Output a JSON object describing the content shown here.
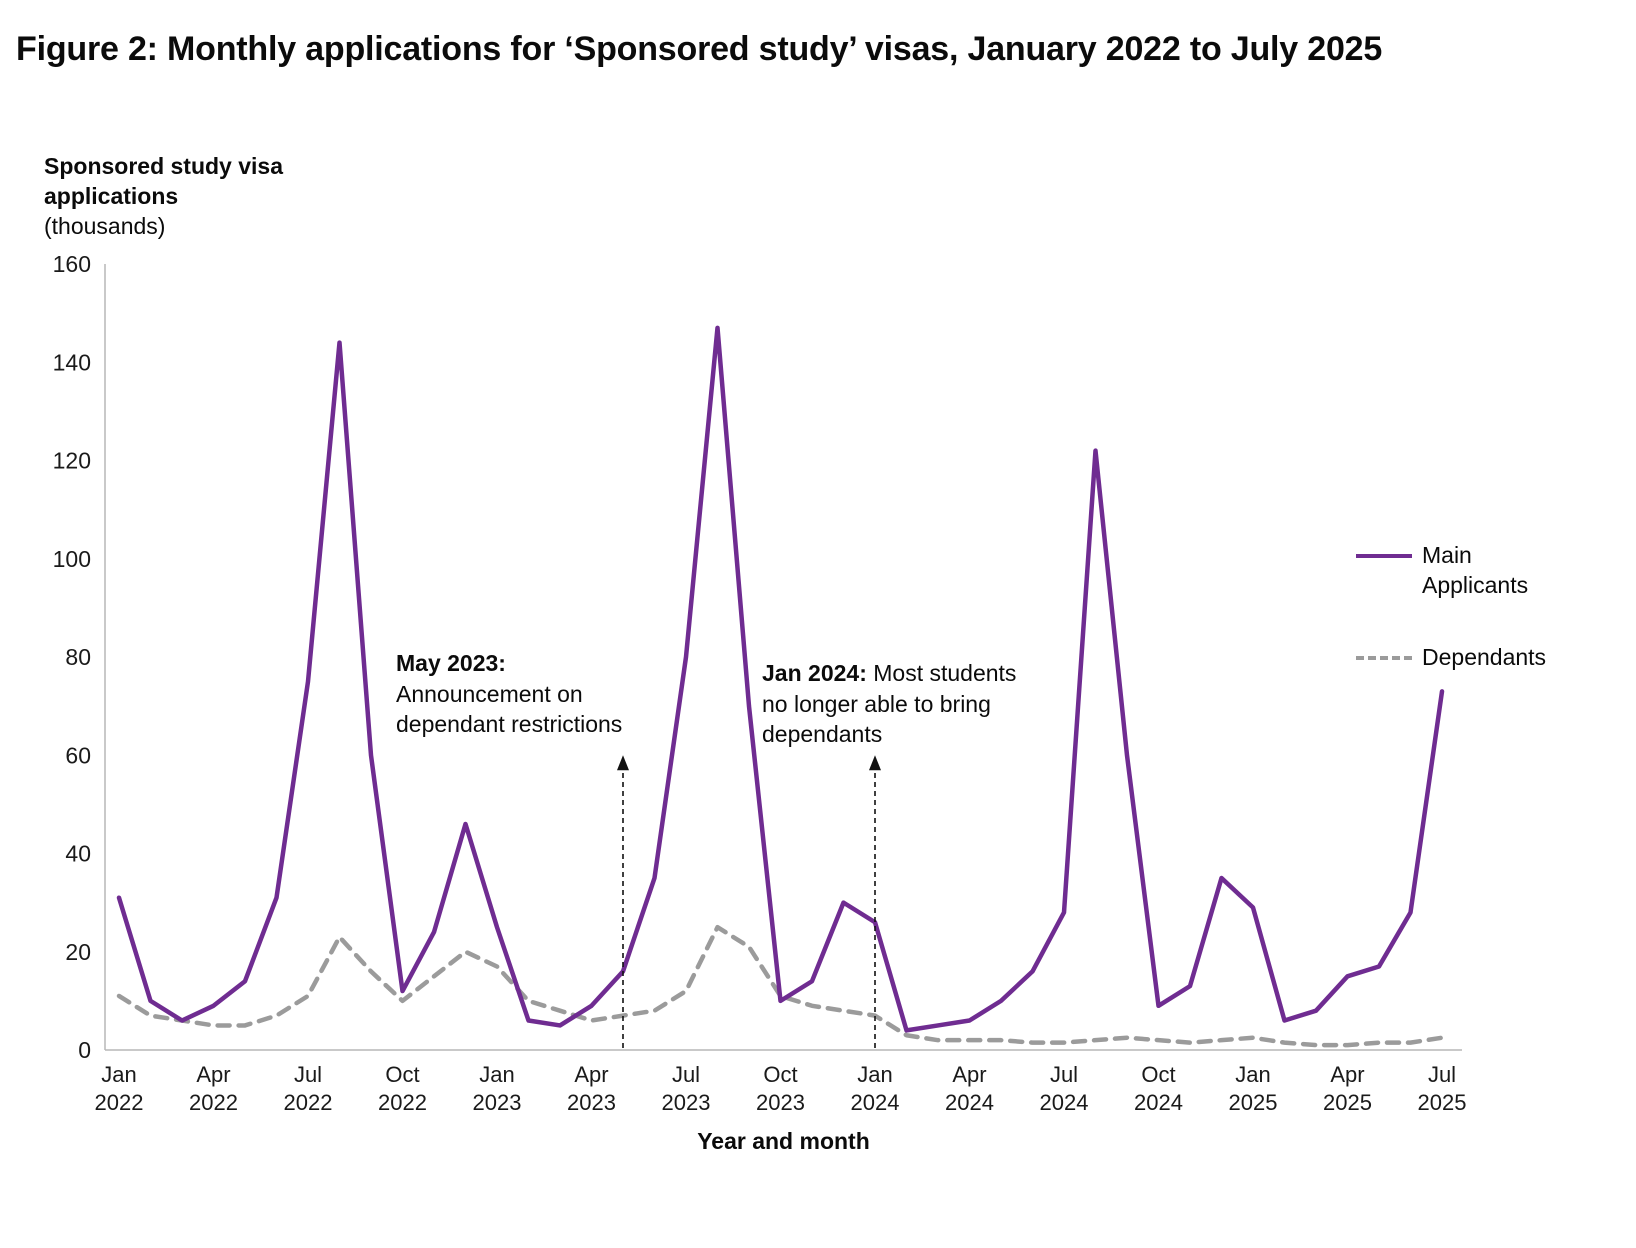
{
  "title": "Figure 2: Monthly applications for ‘Sponsored study’ visas, January 2022 to July 2025",
  "y_axis": {
    "title_bold": "Sponsored study visa applications",
    "title_note": "(thousands)"
  },
  "x_axis": {
    "title": "Year and month"
  },
  "legend": {
    "items": [
      {
        "label": "Main Applicants",
        "style": "solid",
        "color": "#6f2c91"
      },
      {
        "label": "Dependants",
        "style": "dashed",
        "color": "#9b9b9b"
      }
    ]
  },
  "annotations": [
    {
      "bold": "May 2023:",
      "rest": "Announcement on dependant restrictions",
      "month": "May 2023",
      "month_index": 16,
      "arrow_top_value": 60
    },
    {
      "bold": "Jan 2024:",
      "rest": " Most students no longer able to bring dependants",
      "month": "Jan 2024",
      "month_index": 24,
      "arrow_top_value": 60
    }
  ],
  "chart_data": {
    "type": "line",
    "title": "Figure 2: Monthly applications for ‘Sponsored study’ visas, January 2022 to July 2025",
    "xlabel": "Year and month",
    "ylabel": "Sponsored study visa applications (thousands)",
    "ylim": [
      0,
      160
    ],
    "yticks": [
      0,
      20,
      40,
      60,
      80,
      100,
      120,
      140,
      160
    ],
    "xtick_every": 3,
    "grid": false,
    "legend_position": "right",
    "categories": [
      "Jan 2022",
      "Feb 2022",
      "Mar 2022",
      "Apr 2022",
      "May 2022",
      "Jun 2022",
      "Jul 2022",
      "Aug 2022",
      "Sep 2022",
      "Oct 2022",
      "Nov 2022",
      "Dec 2022",
      "Jan 2023",
      "Feb 2023",
      "Mar 2023",
      "Apr 2023",
      "May 2023",
      "Jun 2023",
      "Jul 2023",
      "Aug 2023",
      "Sep 2023",
      "Oct 2023",
      "Nov 2023",
      "Dec 2023",
      "Jan 2024",
      "Feb 2024",
      "Mar 2024",
      "Apr 2024",
      "May 2024",
      "Jun 2024",
      "Jul 2024",
      "Aug 2024",
      "Sep 2024",
      "Oct 2024",
      "Nov 2024",
      "Dec 2024",
      "Jan 2025",
      "Feb 2025",
      "Mar 2025",
      "Apr 2025",
      "May 2025",
      "Jun 2025",
      "Jul 2025"
    ],
    "series": [
      {
        "name": "Main Applicants",
        "color": "#6f2c91",
        "style": "solid",
        "values": [
          31,
          10,
          6,
          9,
          14,
          31,
          75,
          144,
          60,
          12,
          24,
          46,
          25,
          6,
          5,
          9,
          16,
          35,
          80,
          147,
          70,
          10,
          14,
          30,
          26,
          4,
          5,
          6,
          10,
          16,
          28,
          122,
          60,
          9,
          13,
          35,
          29,
          6,
          8,
          15,
          17,
          28,
          73
        ]
      },
      {
        "name": "Dependants",
        "color": "#9b9b9b",
        "style": "dashed",
        "values": [
          11,
          7,
          6,
          5,
          5,
          7,
          11,
          23,
          16,
          10,
          15,
          20,
          17,
          10,
          8,
          6,
          7,
          8,
          12,
          25,
          21,
          11,
          9,
          8,
          7,
          3,
          2,
          2,
          2,
          1.5,
          1.5,
          2,
          2.5,
          2,
          1.5,
          2,
          2.5,
          1.5,
          1,
          1,
          1.5,
          1.5,
          2.5
        ]
      }
    ]
  }
}
